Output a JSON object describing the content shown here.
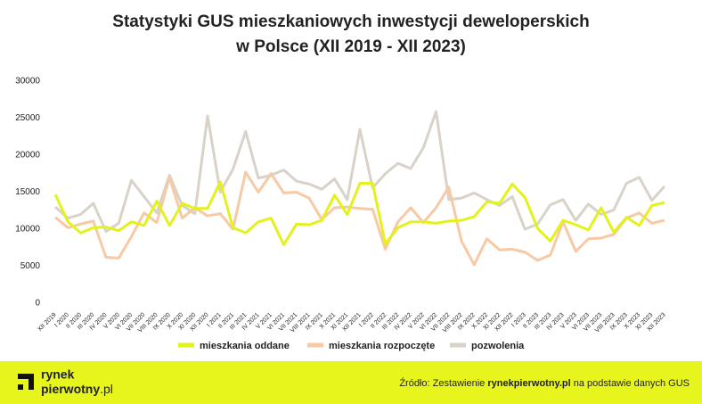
{
  "chart_data": {
    "type": "line",
    "title": [
      "Statystyki GUS mieszkaniowych inwestycji deweloperskich",
      "w Polsce (XII 2019 - XII 2023)"
    ],
    "categories": [
      "XII 2019",
      "I 2020",
      "II 2020",
      "III 2020",
      "IV 2020",
      "V 2020",
      "VI 2020",
      "VII 2020",
      "VIII 2020",
      "IX 2020",
      "X 2020",
      "XI 2020",
      "XII 2020",
      "I 2021",
      "II 2021",
      "III 2021",
      "IV 2021",
      "V 2021",
      "VI 2021",
      "VII 2021",
      "VIII 2021",
      "IX 2021",
      "X 2021",
      "XI 2021",
      "XII 2021",
      "I 2022",
      "II 2022",
      "III 2022",
      "IV 2022",
      "V 2022",
      "VI 2022",
      "VII 2022",
      "VIII 2022",
      "IX 2022",
      "X 2022",
      "XI 2022",
      "XII 2022",
      "I 2023",
      "II 2023",
      "III 2023",
      "IV 2023",
      "V 2023",
      "VI 2023",
      "VII 2023",
      "VIII 2023",
      "IX 2023",
      "X 2023",
      "XI 2023",
      "XII 2023"
    ],
    "series": [
      {
        "name": "mieszkania oddane",
        "color": "#e3f21a",
        "values": [
          14700,
          11000,
          9500,
          10200,
          10300,
          9800,
          11000,
          10500,
          13800,
          10500,
          13500,
          12800,
          12800,
          16400,
          10200,
          9500,
          11000,
          11500,
          7900,
          10700,
          10600,
          11200,
          14600,
          12000,
          16200,
          16200,
          8000,
          10200,
          11000,
          11000,
          10800,
          11100,
          11200,
          11700,
          13700,
          13500,
          16100,
          14300,
          10100,
          8400,
          11200,
          10600,
          9900,
          12900,
          9600,
          11600,
          10500,
          13200,
          13600
        ]
      },
      {
        "name": "mieszkania rozpoczęte",
        "color": "#f7c9a5",
        "values": [
          11600,
          10200,
          10700,
          11100,
          6200,
          6100,
          9000,
          12200,
          10900,
          17000,
          11500,
          12900,
          11800,
          12100,
          10000,
          17700,
          15000,
          17500,
          14900,
          15000,
          14200,
          11300,
          12900,
          13000,
          12800,
          12700,
          7300,
          11000,
          12900,
          10900,
          12900,
          15700,
          8400,
          5200,
          8700,
          7200,
          7300,
          6900,
          5800,
          6500,
          11000,
          7000,
          8700,
          8800,
          9300,
          11500,
          12200,
          10800,
          11200
        ]
      },
      {
        "name": "pozwolenia",
        "color": "#d9d2c8",
        "values": [
          13000,
          11500,
          12000,
          13500,
          9700,
          10800,
          16600,
          14400,
          12200,
          17300,
          13200,
          12100,
          25300,
          15000,
          18100,
          23200,
          16900,
          17300,
          18000,
          16500,
          16100,
          15400,
          16800,
          14000,
          23500,
          15600,
          17500,
          18900,
          18200,
          21000,
          25900,
          14000,
          14200,
          14900,
          14000,
          13200,
          14400,
          10000,
          10700,
          13300,
          14000,
          11200,
          13400,
          12000,
          12600,
          16200,
          17000,
          13900,
          15800
        ]
      }
    ],
    "ylim": [
      0,
      30000
    ],
    "yticks": [
      0,
      5000,
      10000,
      15000,
      20000,
      25000,
      30000
    ]
  },
  "footer": {
    "logo_top": "rynek",
    "logo_bottom": "pierwotny",
    "logo_suffix": ".pl",
    "source_prefix": "Źródło: Zestawienie ",
    "source_bold": "rynekpierwotny.pl",
    "source_suffix": " na podstawie danych GUS"
  }
}
